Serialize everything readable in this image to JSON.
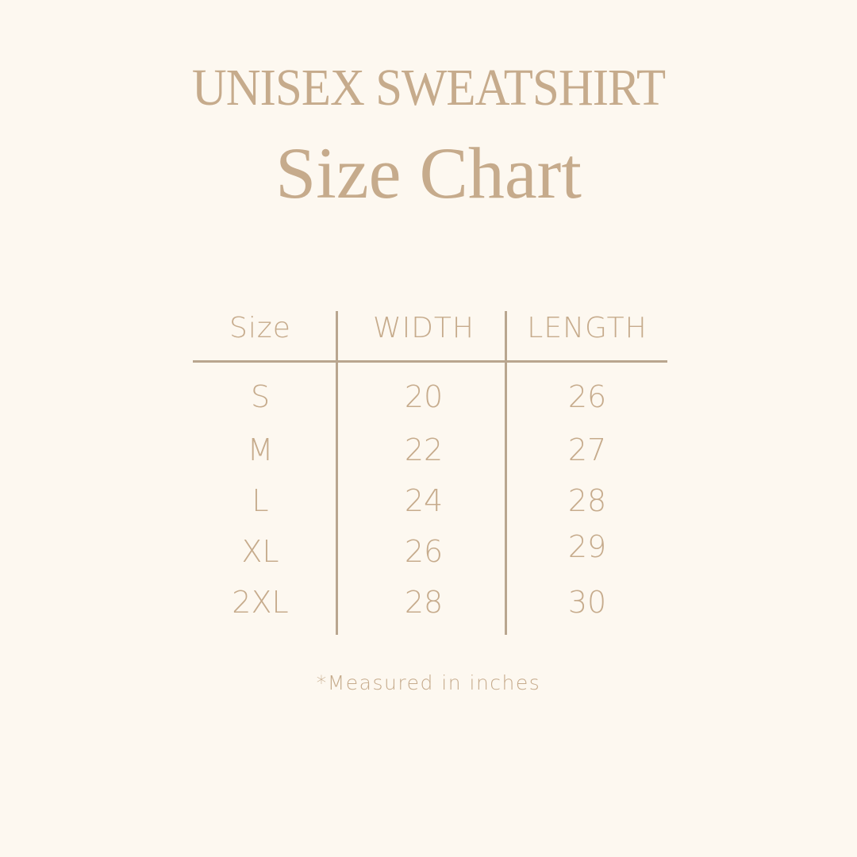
{
  "header": {
    "title": "UNISEX SWEATSHIRT",
    "subtitle": "Size Chart"
  },
  "table": {
    "columns": [
      "Size",
      "WIDTH",
      "LENGTH"
    ],
    "rows": [
      [
        "S",
        "20",
        "26"
      ],
      [
        "M",
        "22",
        "27"
      ],
      [
        "L",
        "24",
        "28"
      ],
      [
        "XL",
        "26",
        "29"
      ],
      [
        "2XL",
        "28",
        "30"
      ]
    ]
  },
  "footnote": "*Measured in inches",
  "colors": {
    "background": "#fdf8f0",
    "text": "#c6ab8c",
    "lines": "#b9a68f"
  }
}
